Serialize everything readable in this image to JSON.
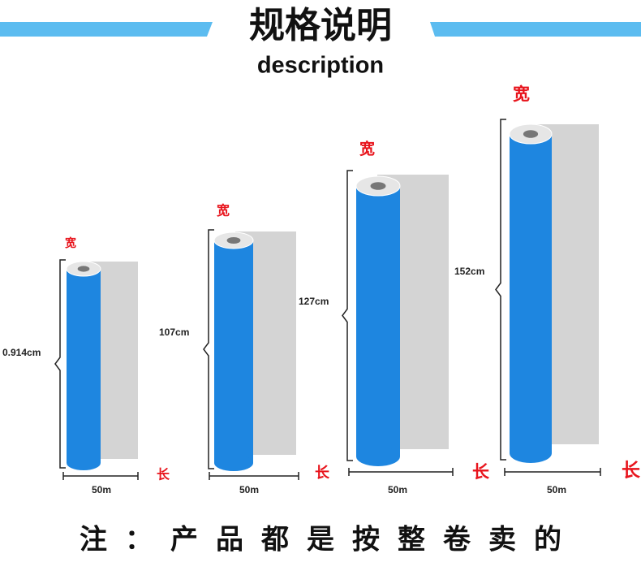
{
  "header": {
    "title": "规格说明",
    "subtitle": "description"
  },
  "rolls": [
    {
      "width_label": "宽",
      "height": "0.914cm",
      "length": "50m",
      "length_label": "长"
    },
    {
      "width_label": "宽",
      "height": "107cm",
      "length": "50m",
      "length_label": "长"
    },
    {
      "width_label": "宽",
      "height": "127cm",
      "length": "50m",
      "length_label": "长"
    },
    {
      "width_label": "宽",
      "height": "152cm",
      "length": "50m",
      "length_label": "长"
    }
  ],
  "note": "注：产品都是按整卷卖的"
}
